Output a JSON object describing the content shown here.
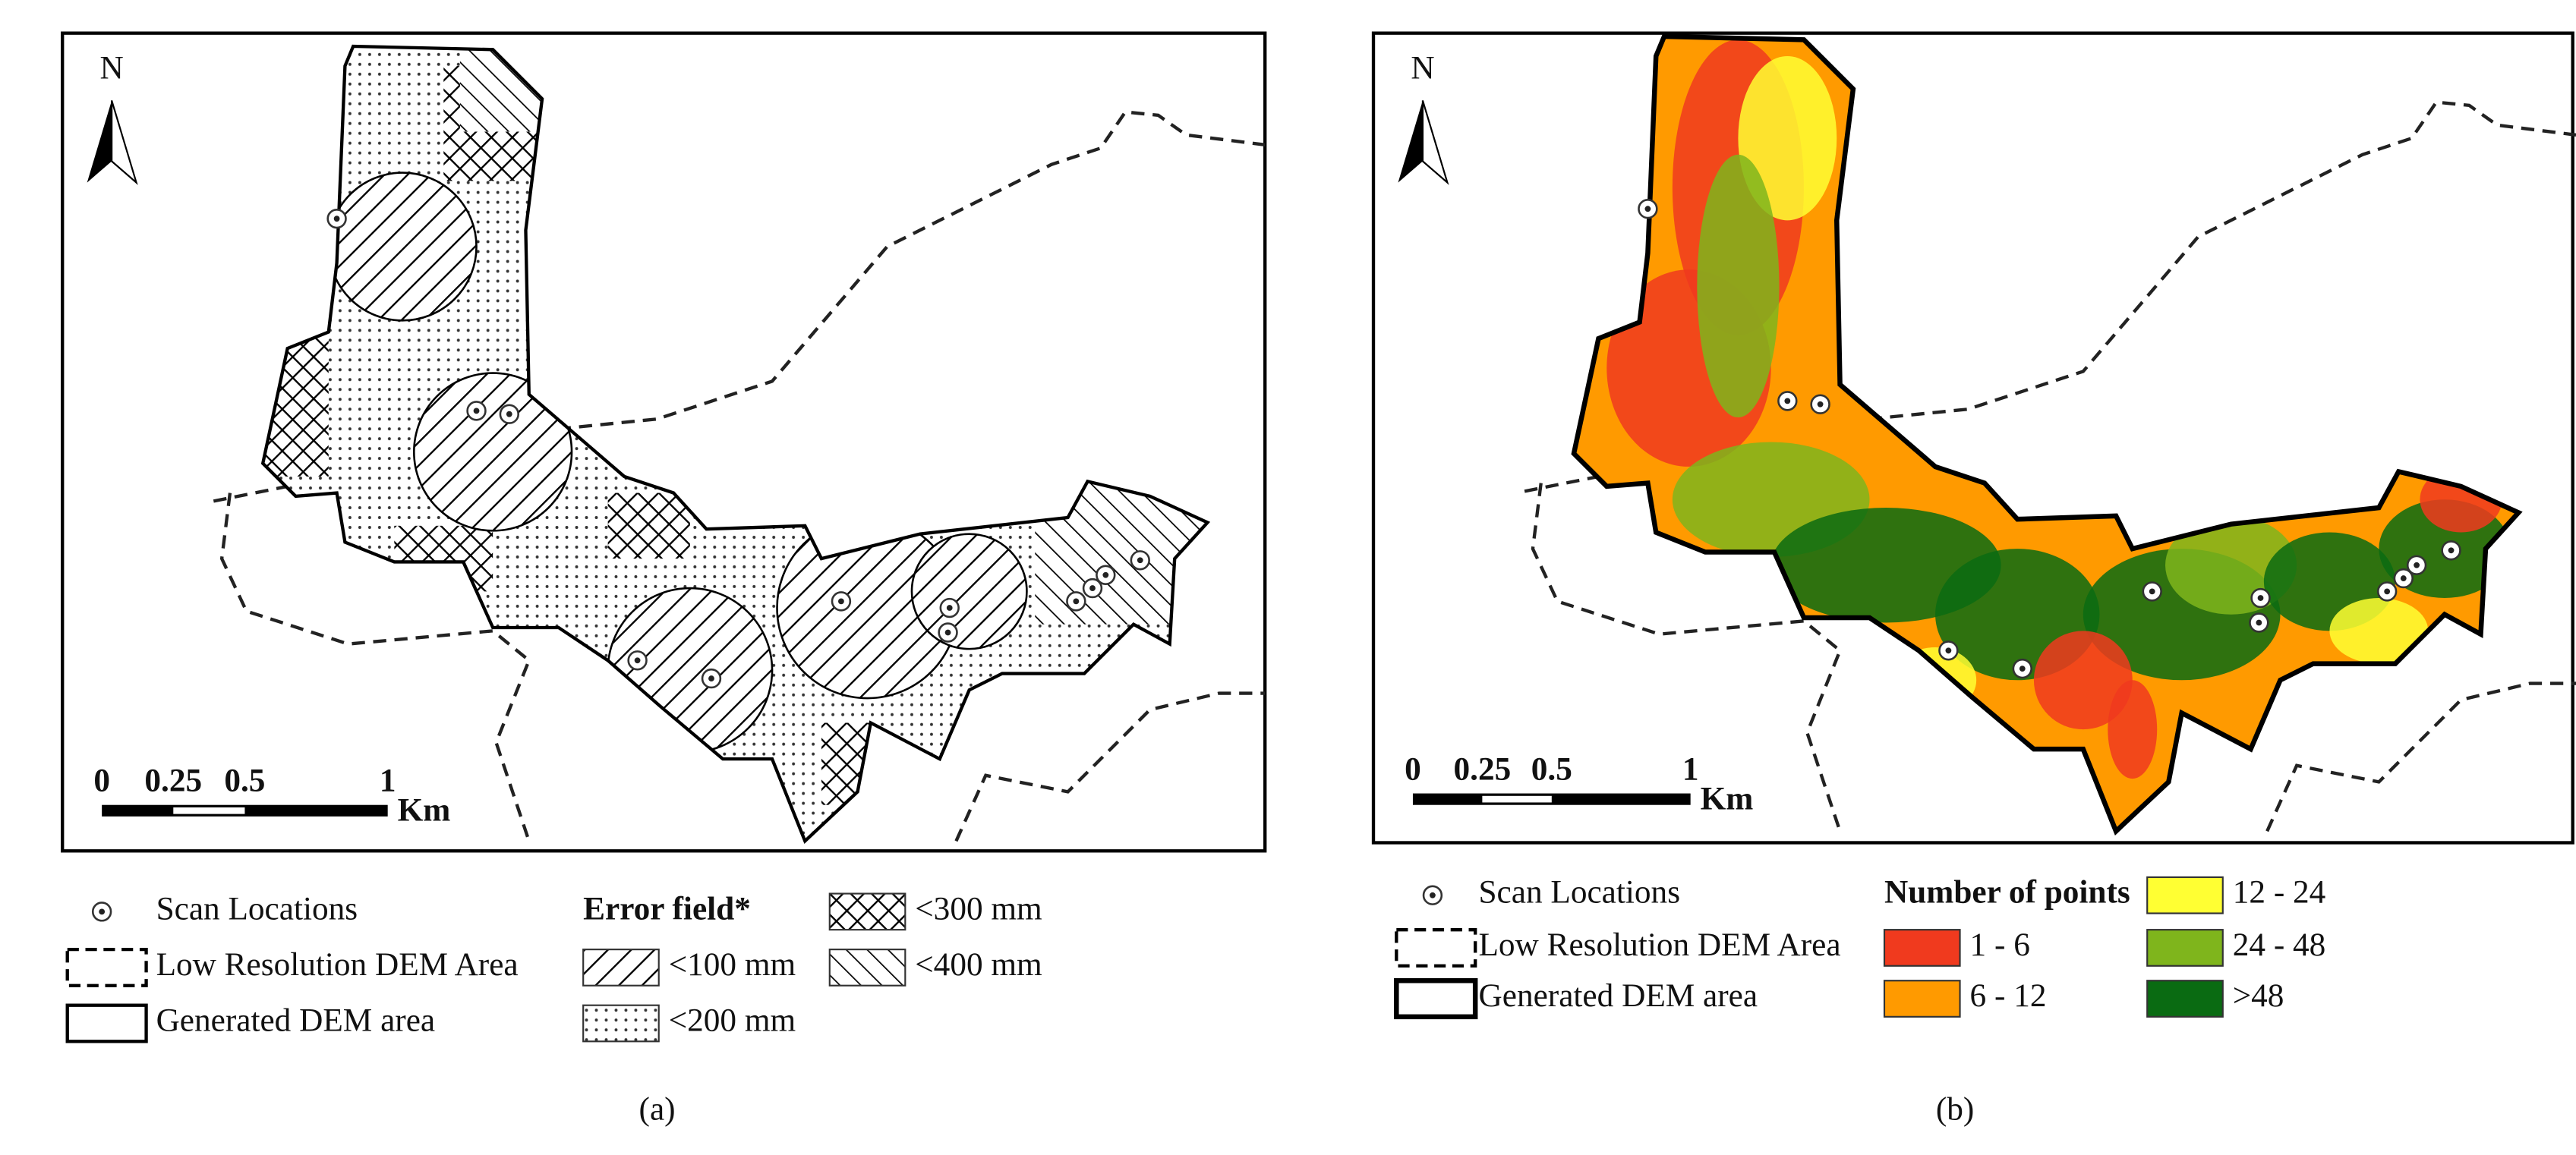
{
  "panels": [
    {
      "label": "(a)",
      "north": "N",
      "scale": {
        "ticks": [
          "0",
          "0.25",
          "0.5",
          "1"
        ],
        "unit": "Km"
      },
      "legend": {
        "scan": "Scan Locations",
        "low_res": "Low Resolution DEM Area",
        "generated": "Generated DEM area",
        "field_title": "Error field*",
        "classes": [
          "<100 mm",
          "<200 mm",
          "<300 mm",
          "<400 mm"
        ]
      }
    },
    {
      "label": "(b)",
      "north": "N",
      "scale": {
        "ticks": [
          "0",
          "0.25",
          "0.5",
          "1"
        ],
        "unit": "Km"
      },
      "legend": {
        "scan": "Scan Locations",
        "low_res": "Low Resolution DEM Area",
        "generated": "Generated DEM area",
        "field_title": "Number of points",
        "classes": [
          "1 - 6",
          "6 - 12",
          "12 - 24",
          "24 - 48",
          ">48"
        ],
        "colors": [
          "#f03a1e",
          "#ff9a00",
          "#ffff33",
          "#7fb51c",
          "#0a6b12"
        ]
      }
    }
  ]
}
